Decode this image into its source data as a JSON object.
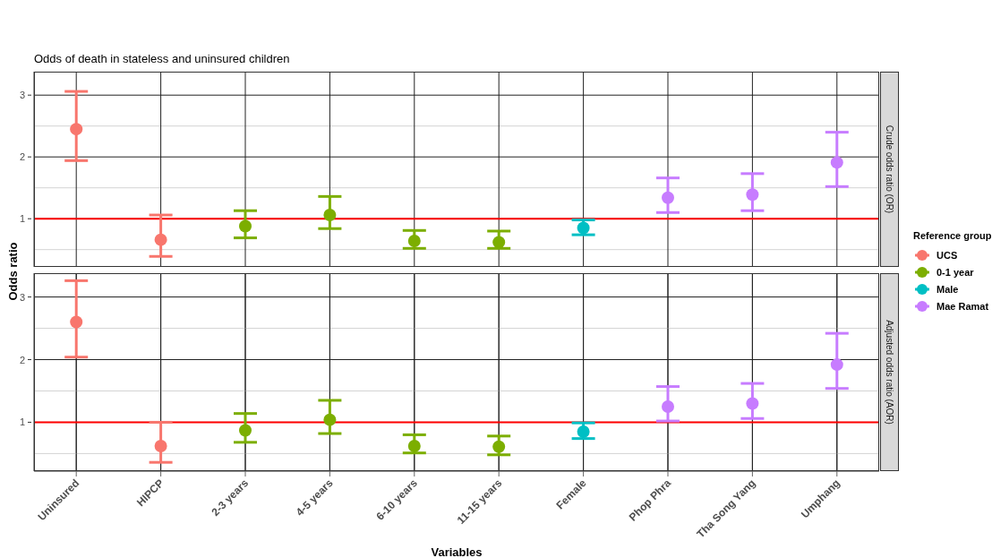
{
  "chart_data": [
    {
      "type": "scatter",
      "title": "Odds of death in stateless and uninsured children",
      "annotations": [
        "Crude odds ratio (OR)"
      ],
      "ylabel": "Odds ratio",
      "legend_title": "Reference group",
      "legend": "right",
      "grid": true,
      "marker": "circle",
      "tick_labels": "y",
      "ylim": [
        0.22,
        3.38
      ],
      "yticks": [
        {
          "value": 0.5,
          "label": null
        },
        1,
        {
          "value": 1.5,
          "label": null
        },
        2,
        {
          "value": 2.5,
          "label": null
        },
        3
      ],
      "ref_lines": [
        {
          "axis": "y",
          "value": 1,
          "color": "#ff0000"
        }
      ],
      "series": [
        {
          "name": "UCS",
          "color": "#f8766d",
          "values": [
            2.45,
            0.66,
            null,
            null,
            null,
            null,
            null,
            null,
            null,
            null
          ],
          "errors": [
            [
              1.94,
              3.06
            ],
            [
              0.39,
              1.06
            ],
            null,
            null,
            null,
            null,
            null,
            null,
            null,
            null
          ]
        },
        {
          "name": "0-1 year",
          "color": "#7cae00",
          "values": [
            null,
            null,
            0.88,
            1.06,
            0.64,
            0.62,
            null,
            null,
            null,
            null
          ],
          "errors": [
            null,
            null,
            [
              0.69,
              1.13
            ],
            [
              0.84,
              1.36
            ],
            [
              0.52,
              0.81
            ],
            [
              0.52,
              0.8
            ],
            null,
            null,
            null,
            null
          ]
        },
        {
          "name": "Male",
          "color": "#00bfc4",
          "values": [
            null,
            null,
            null,
            null,
            null,
            null,
            0.85,
            null,
            null,
            null
          ],
          "errors": [
            null,
            null,
            null,
            null,
            null,
            null,
            [
              0.74,
              0.98
            ],
            null,
            null,
            null
          ]
        },
        {
          "name": "Mae Ramat",
          "color": "#c77cff",
          "values": [
            null,
            null,
            null,
            null,
            null,
            null,
            null,
            1.34,
            1.39,
            1.91
          ],
          "errors": [
            null,
            null,
            null,
            null,
            null,
            null,
            null,
            [
              1.1,
              1.66
            ],
            [
              1.13,
              1.73
            ],
            [
              1.52,
              2.4
            ]
          ]
        }
      ]
    },
    {
      "type": "scatter",
      "annotations": [
        "Adjusted odds ratio (AOR)"
      ],
      "xlabel": "Variables",
      "grid": true,
      "marker": "circle",
      "categories": [
        "Uninsured",
        "HIPCP",
        "2-3 years",
        "4-5 years",
        "6-10 years",
        "11-15 years",
        "Female",
        "Phop Phra",
        "Tha Song Yang",
        "Umphang"
      ],
      "ylim": [
        0.22,
        3.38
      ],
      "yticks": [
        {
          "value": 0.5,
          "label": null
        },
        1,
        {
          "value": 1.5,
          "label": null
        },
        2,
        {
          "value": 2.5,
          "label": null
        },
        3
      ],
      "ref_lines": [
        {
          "axis": "y",
          "value": 1,
          "color": "#ff0000"
        }
      ],
      "series": [
        {
          "color": "#f8766d",
          "values": [
            2.6,
            0.62,
            null,
            null,
            null,
            null,
            null,
            null,
            null,
            null
          ],
          "errors": [
            [
              2.04,
              3.26
            ],
            [
              0.36,
              1.0
            ],
            null,
            null,
            null,
            null,
            null,
            null,
            null,
            null
          ]
        },
        {
          "color": "#7cae00",
          "values": [
            null,
            null,
            0.87,
            1.04,
            0.62,
            0.61,
            null,
            null,
            null,
            null
          ],
          "errors": [
            null,
            null,
            [
              0.68,
              1.14
            ],
            [
              0.82,
              1.35
            ],
            [
              0.51,
              0.8
            ],
            [
              0.48,
              0.78
            ],
            null,
            null,
            null,
            null
          ]
        },
        {
          "color": "#00bfc4",
          "values": [
            null,
            null,
            null,
            null,
            null,
            null,
            0.85,
            null,
            null,
            null
          ],
          "errors": [
            null,
            null,
            null,
            null,
            null,
            null,
            [
              0.74,
              0.99
            ],
            null,
            null,
            null
          ]
        },
        {
          "color": "#c77cff",
          "values": [
            null,
            null,
            null,
            null,
            null,
            null,
            null,
            1.25,
            1.3,
            1.92
          ],
          "errors": [
            null,
            null,
            null,
            null,
            null,
            null,
            null,
            [
              1.02,
              1.57
            ],
            [
              1.06,
              1.62
            ],
            [
              1.54,
              2.42
            ]
          ]
        }
      ]
    }
  ]
}
